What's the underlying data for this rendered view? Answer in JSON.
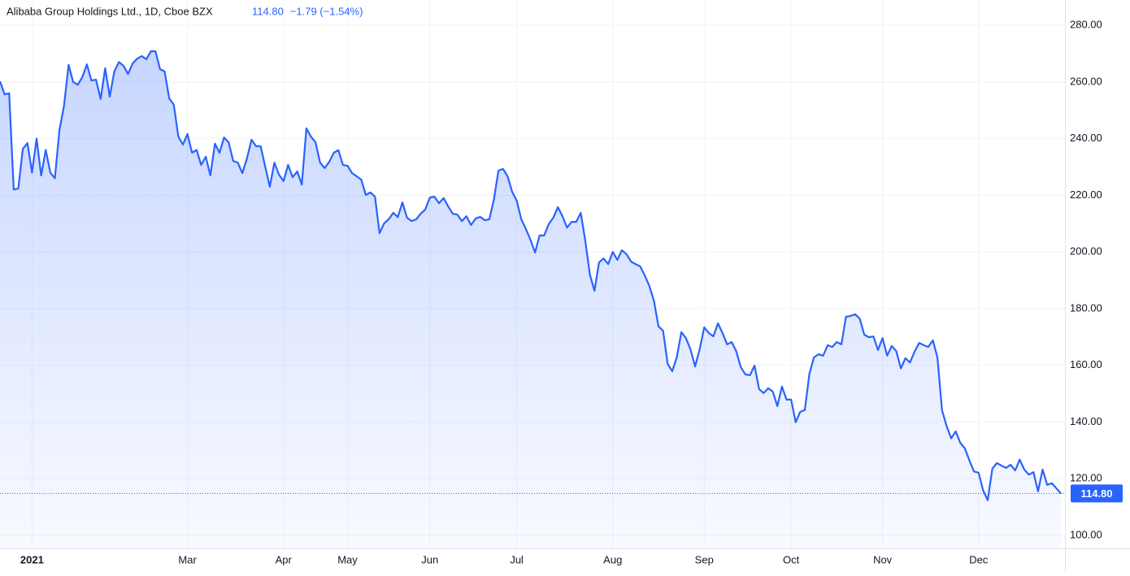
{
  "chart_data": {
    "type": "area",
    "title": "Alibaba Group Holdings Ltd., 1D, Cboe BZX",
    "last_value_label": "114.80",
    "change_label": "−1.79 (−1.54%)",
    "color": "#2962ff",
    "grid": true,
    "ylim": [
      95.4,
      288.9
    ],
    "yticks": [
      {
        "value": 100,
        "label": "100.00"
      },
      {
        "value": 120,
        "label": "120.00"
      },
      {
        "value": 140,
        "label": "140.00"
      },
      {
        "value": 160,
        "label": "160.00"
      },
      {
        "value": 180,
        "label": "180.00"
      },
      {
        "value": 200,
        "label": "200.00"
      },
      {
        "value": 220,
        "label": "220.00"
      },
      {
        "value": 240,
        "label": "240.00"
      },
      {
        "value": 260,
        "label": "260.00"
      },
      {
        "value": 280,
        "label": "280.00"
      }
    ],
    "categories": [
      null,
      null,
      null,
      null,
      null,
      null,
      null,
      "2021",
      null,
      null,
      null,
      null,
      null,
      null,
      null,
      null,
      null,
      null,
      null,
      null,
      null,
      null,
      null,
      null,
      null,
      null,
      null,
      null,
      null,
      null,
      null,
      null,
      null,
      null,
      null,
      null,
      null,
      null,
      null,
      null,
      null,
      "Mar",
      null,
      null,
      null,
      null,
      null,
      null,
      null,
      null,
      null,
      null,
      null,
      null,
      null,
      null,
      null,
      null,
      null,
      null,
      null,
      null,
      "Apr",
      null,
      null,
      null,
      null,
      null,
      null,
      null,
      null,
      null,
      null,
      null,
      null,
      null,
      "May",
      null,
      null,
      null,
      null,
      null,
      null,
      null,
      null,
      null,
      null,
      null,
      null,
      null,
      null,
      null,
      null,
      null,
      "Jun",
      null,
      null,
      null,
      null,
      null,
      null,
      null,
      null,
      null,
      null,
      null,
      null,
      null,
      null,
      null,
      null,
      null,
      null,
      "Jul",
      null,
      null,
      null,
      null,
      null,
      null,
      null,
      null,
      null,
      null,
      null,
      null,
      null,
      null,
      null,
      null,
      null,
      null,
      null,
      null,
      "Aug",
      null,
      null,
      null,
      null,
      null,
      null,
      null,
      null,
      null,
      null,
      null,
      null,
      null,
      null,
      null,
      null,
      null,
      null,
      null,
      "Sep",
      null,
      null,
      null,
      null,
      null,
      null,
      null,
      null,
      null,
      null,
      null,
      null,
      null,
      null,
      null,
      null,
      null,
      null,
      "Oct",
      null,
      null,
      null,
      null,
      null,
      null,
      null,
      null,
      null,
      null,
      null,
      null,
      null,
      null,
      null,
      null,
      null,
      null,
      null,
      "Nov",
      null,
      null,
      null,
      null,
      null,
      null,
      null,
      null,
      null,
      null,
      null,
      null,
      null,
      null,
      null,
      null,
      null,
      null,
      null,
      null,
      "Dec",
      null,
      null,
      null,
      null,
      null,
      null,
      null,
      null,
      null,
      null,
      null,
      null,
      null,
      null,
      null,
      null,
      null,
      null
    ],
    "values": [
      260.2,
      255.6,
      256,
      222,
      222.4,
      236.4,
      238.4,
      228,
      240,
      227,
      236,
      228,
      226,
      243,
      251.6,
      266,
      260,
      259,
      261.7,
      266.2,
      260.5,
      260.8,
      254,
      264.8,
      254.8,
      263.7,
      267,
      265.7,
      262.8,
      266.5,
      268.2,
      269.1,
      268,
      270.8,
      270.8,
      264.5,
      263.7,
      254.2,
      252,
      240.7,
      237.9,
      241.6,
      235,
      236,
      230.7,
      233.6,
      227,
      238.2,
      235,
      240.4,
      238.7,
      232.1,
      231.5,
      227.8,
      233,
      239.6,
      237.3,
      237.3,
      230.1,
      223,
      231.5,
      227.3,
      225,
      230.7,
      226.4,
      228.4,
      223.8,
      243.6,
      240.7,
      238.7,
      231.5,
      229.6,
      231.8,
      235,
      235.9,
      230.7,
      230.4,
      227.8,
      226.7,
      225.5,
      220.1,
      221,
      219.5,
      206.6,
      210.1,
      211.5,
      213.8,
      212.3,
      217.5,
      212.1,
      210.9,
      211.5,
      213.5,
      215,
      219.2,
      219.5,
      217.2,
      219,
      216.1,
      213.5,
      213.2,
      210.9,
      212.6,
      209.5,
      211.8,
      212.4,
      211.2,
      211.5,
      218.4,
      228.7,
      229.3,
      226.7,
      221.2,
      218.1,
      211.5,
      208.1,
      204.3,
      199.8,
      205.8,
      205.8,
      209.8,
      212.1,
      215.8,
      212.6,
      208.6,
      210.6,
      210.6,
      213.8,
      203.8,
      192,
      186.3,
      196.3,
      197.7,
      195.7,
      200,
      197.2,
      200.6,
      199.2,
      196.6,
      195.7,
      194.9,
      191.7,
      188,
      182.8,
      173.7,
      172.2,
      160.5,
      157.9,
      162.8,
      171.7,
      169.6,
      165.6,
      159.6,
      165.6,
      173.4,
      171.4,
      170.2,
      174.8,
      171.4,
      167.4,
      168.2,
      165,
      159.3,
      156.8,
      156.5,
      159.9,
      151.6,
      150.2,
      151.9,
      150.7,
      145.6,
      152.5,
      147.9,
      147.9,
      139.9,
      143.6,
      144.2,
      157,
      162.8,
      163.9,
      163.4,
      167.1,
      166.5,
      168.2,
      167.4,
      177.1,
      177.4,
      178,
      176.5,
      170.8,
      169.9,
      170.2,
      165.4,
      169.6,
      163.4,
      166.8,
      165,
      158.9,
      162.5,
      161,
      164.8,
      167.9,
      167.1,
      166.5,
      168.8,
      162.8,
      144.2,
      138.6,
      134.2,
      136.7,
      132.6,
      130.7,
      126.4,
      122.5,
      122.1,
      115.8,
      112.4,
      123.5,
      125.5,
      124.6,
      123.8,
      124.9,
      122.9,
      126.7,
      123.2,
      121.4,
      122.3,
      115.5,
      123.2,
      117.8,
      118.4,
      116.6,
      114.8
    ]
  }
}
